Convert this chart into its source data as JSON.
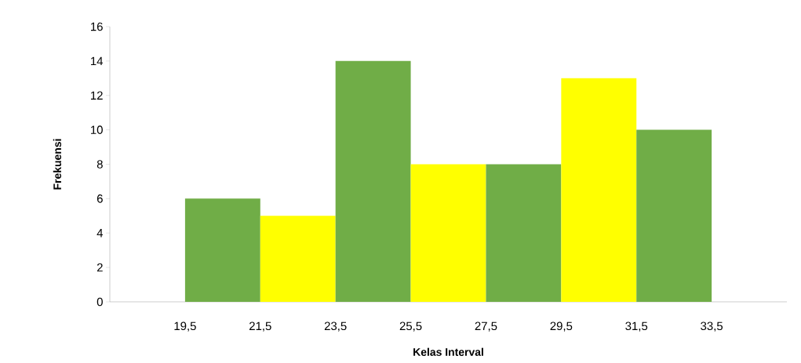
{
  "chart_data": {
    "type": "histogram",
    "xlabel": "Kelas Interval",
    "ylabel": "Frekuensi",
    "bins": [
      19.5,
      21.5,
      23.5,
      25.5,
      27.5,
      29.5,
      31.5,
      33.5
    ],
    "values": [
      6,
      5,
      14,
      8,
      8,
      13,
      10
    ],
    "colors": [
      "#70ad47",
      "#ffff00",
      "#70ad47",
      "#ffff00",
      "#70ad47",
      "#ffff00",
      "#70ad47"
    ],
    "xlim": [
      17.5,
      35.5
    ],
    "xticks": [
      {
        "value": 19.5,
        "label": "19,5"
      },
      {
        "value": 21.5,
        "label": "21,5"
      },
      {
        "value": 23.5,
        "label": "23,5"
      },
      {
        "value": 25.5,
        "label": "25,5"
      },
      {
        "value": 27.5,
        "label": "27,5"
      },
      {
        "value": 29.5,
        "label": "29,5"
      },
      {
        "value": 31.5,
        "label": "31,5"
      },
      {
        "value": 33.5,
        "label": "33,5"
      }
    ],
    "ylim": [
      0,
      16
    ],
    "yticks": [
      0,
      2,
      4,
      6,
      8,
      10,
      12,
      14,
      16
    ],
    "grid": false
  }
}
